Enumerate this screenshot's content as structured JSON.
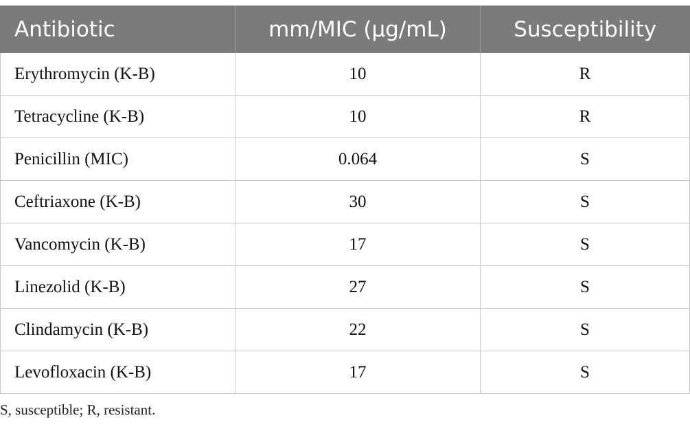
{
  "table": {
    "headers": [
      "Antibiotic",
      "mm/MIC (µg/mL)",
      "Susceptibility"
    ],
    "rows": [
      {
        "antibiotic": "Erythromycin (K-B)",
        "value": "10",
        "susceptibility": "R"
      },
      {
        "antibiotic": "Tetracycline (K-B)",
        "value": "10",
        "susceptibility": "R"
      },
      {
        "antibiotic": "Penicillin (MIC)",
        "value": "0.064",
        "susceptibility": "S"
      },
      {
        "antibiotic": "Ceftriaxone (K-B)",
        "value": "30",
        "susceptibility": "S"
      },
      {
        "antibiotic": "Vancomycin (K-B)",
        "value": "17",
        "susceptibility": "S"
      },
      {
        "antibiotic": "Linezolid (K-B)",
        "value": "27",
        "susceptibility": "S"
      },
      {
        "antibiotic": "Clindamycin (K-B)",
        "value": "22",
        "susceptibility": "S"
      },
      {
        "antibiotic": "Levofloxacin (K-B)",
        "value": "17",
        "susceptibility": "S"
      }
    ]
  },
  "footnote": "S, susceptible; R, resistant.",
  "colors": {
    "header_background": "#7b7b7b",
    "header_text": "#ffffff",
    "grid_lines": "#c8c8c8"
  }
}
